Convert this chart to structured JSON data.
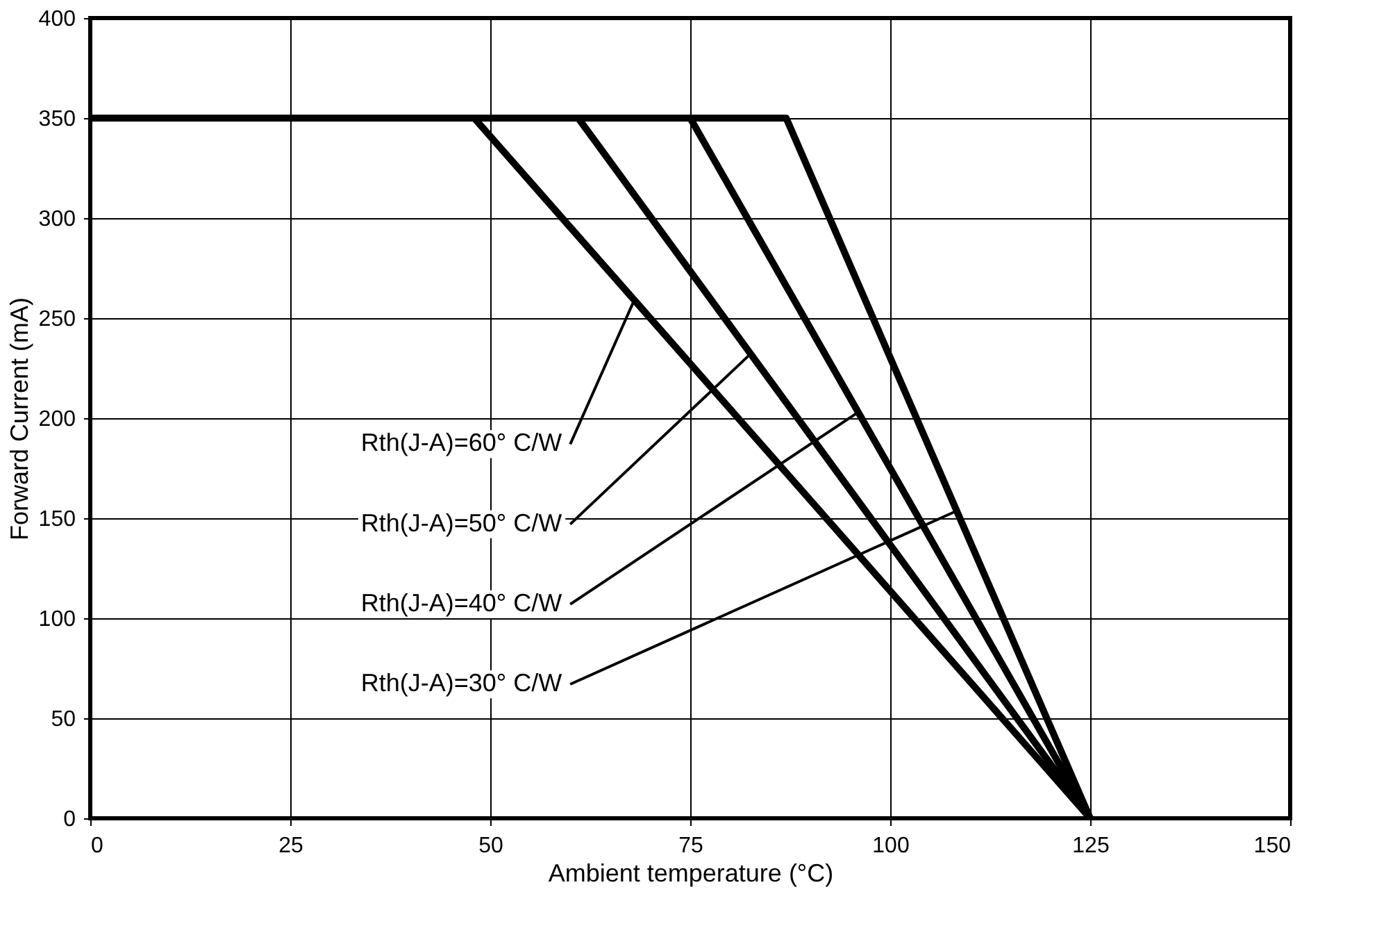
{
  "chart_data": {
    "type": "line",
    "xlabel": "Ambient temperature (°C)",
    "ylabel": "Forward Current (mA)",
    "xlim": [
      0,
      150
    ],
    "xticks": [
      0,
      25,
      50,
      75,
      100,
      125,
      150
    ],
    "ylim": [
      0,
      400
    ],
    "yticks": [
      0,
      50,
      100,
      150,
      200,
      250,
      300,
      350,
      400
    ],
    "grid": true,
    "line_style": "solid",
    "series": [
      {
        "color": "#000000",
        "x": [
          0,
          48,
          125
        ],
        "values": [
          350,
          350,
          0
        ]
      },
      {
        "color": "#000000",
        "x": [
          0,
          61,
          125
        ],
        "values": [
          350,
          350,
          0
        ]
      },
      {
        "color": "#000000",
        "x": [
          0,
          75,
          125
        ],
        "values": [
          350,
          350,
          0
        ]
      },
      {
        "color": "#000000",
        "x": [
          0,
          87,
          125
        ],
        "values": [
          350,
          350,
          0
        ]
      }
    ],
    "annotations": [
      {
        "text": "Rth(J-A)=60° C/W",
        "x": 68,
        "y": 259
      },
      {
        "text": "Rth(J-A)=50° C/W",
        "x": 82.5,
        "y": 232
      },
      {
        "text": "Rth(J-A)=40° C/W",
        "x": 96,
        "y": 203
      },
      {
        "text": "Rth(J-A)=30° C/W",
        "x": 108.5,
        "y": 154
      }
    ]
  }
}
